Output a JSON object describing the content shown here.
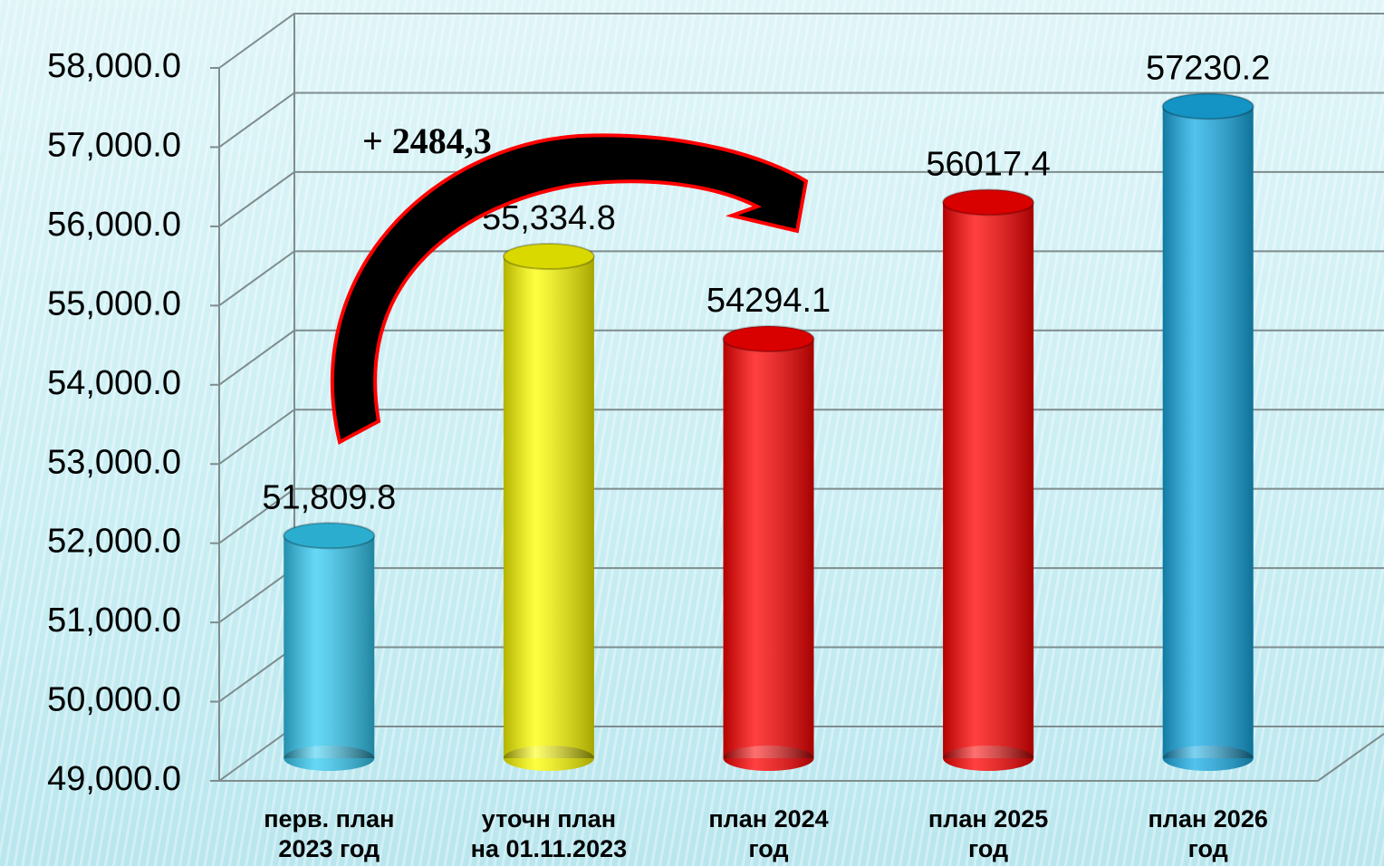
{
  "chart_data": {
    "type": "bar",
    "categories": [
      "перв. план\n2023 год",
      "уточн план\nна 01.11.2023",
      "план  2024\nгод",
      "план  2025\nгод",
      "план  2026\nгод"
    ],
    "values": [
      51809.8,
      55334.8,
      54294.1,
      56017.4,
      57230.2
    ],
    "value_labels": [
      "51,809.8",
      "55,334.8",
      "54294.1",
      "56017.4",
      "57230.2"
    ],
    "colors": [
      "#33ccf5",
      "#ffff00",
      "#ff0000",
      "#ff0000",
      "#18aee8"
    ],
    "ylim": [
      49000,
      58000
    ],
    "yticks": [
      {
        "value": 49000,
        "label": "49,000.0"
      },
      {
        "value": 50000,
        "label": "50,000.0"
      },
      {
        "value": 51000,
        "label": "51,000.0"
      },
      {
        "value": 52000,
        "label": "52,000.0"
      },
      {
        "value": 53000,
        "label": "53,000.0"
      },
      {
        "value": 54000,
        "label": "54,000.0"
      },
      {
        "value": 55000,
        "label": "55,000.0"
      },
      {
        "value": 56000,
        "label": "56,000.0"
      },
      {
        "value": 57000,
        "label": "57,000.0"
      },
      {
        "value": 58000,
        "label": "58,000.0"
      }
    ],
    "grid": true,
    "annotation": "+ 2484,3"
  }
}
